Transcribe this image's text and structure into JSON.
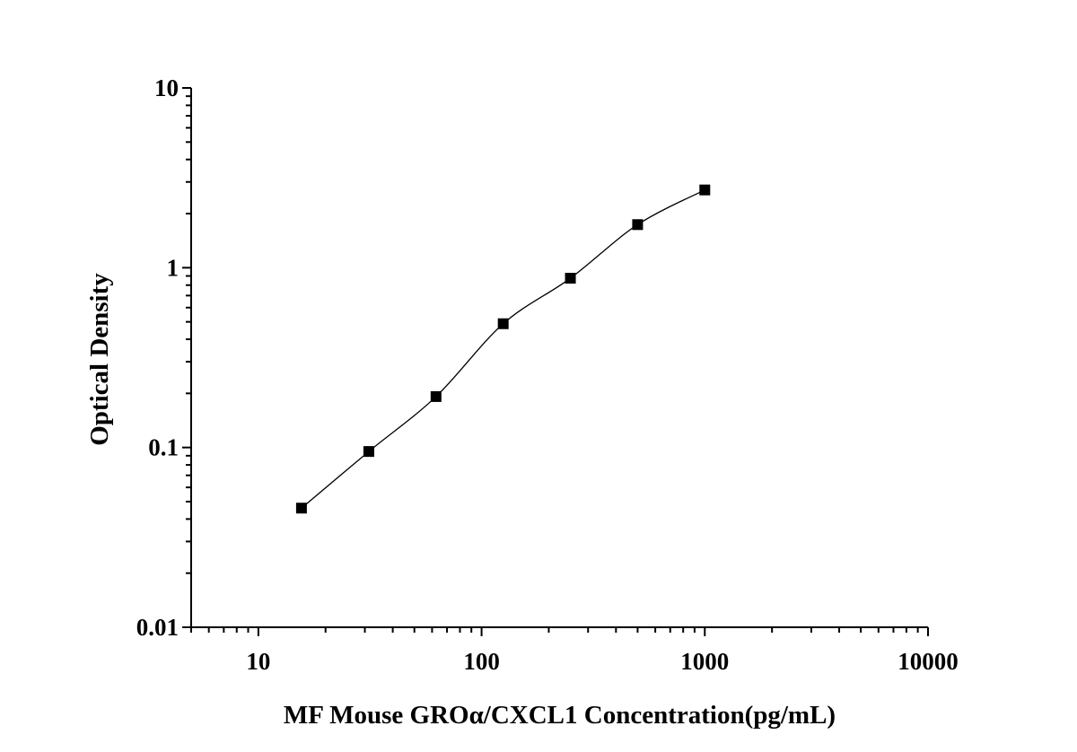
{
  "chart_data": {
    "type": "scatter",
    "title": "",
    "xlabel": "MF Mouse GROα/CXCL1 Concentration(pg/mL)",
    "ylabel": "Optical Density",
    "x_scale": "log",
    "y_scale": "log",
    "xlim": [
      5,
      10000
    ],
    "ylim": [
      0.01,
      10
    ],
    "x_ticks": [
      10,
      100,
      1000,
      10000
    ],
    "x_tick_labels": [
      "10",
      "100",
      "1000",
      "10000"
    ],
    "y_ticks": [
      0.01,
      0.1,
      1,
      10
    ],
    "y_tick_labels": [
      "0.01",
      "0.1",
      "1",
      "10"
    ],
    "grid": false,
    "legend": "none",
    "series": [
      {
        "x": [
          15.6,
          31.25,
          62.5,
          125,
          250,
          500,
          1000
        ],
        "y": [
          0.046,
          0.095,
          0.192,
          0.488,
          0.874,
          1.737,
          2.708
        ],
        "marker": "square",
        "line": "smooth",
        "color": "#000000"
      }
    ]
  }
}
